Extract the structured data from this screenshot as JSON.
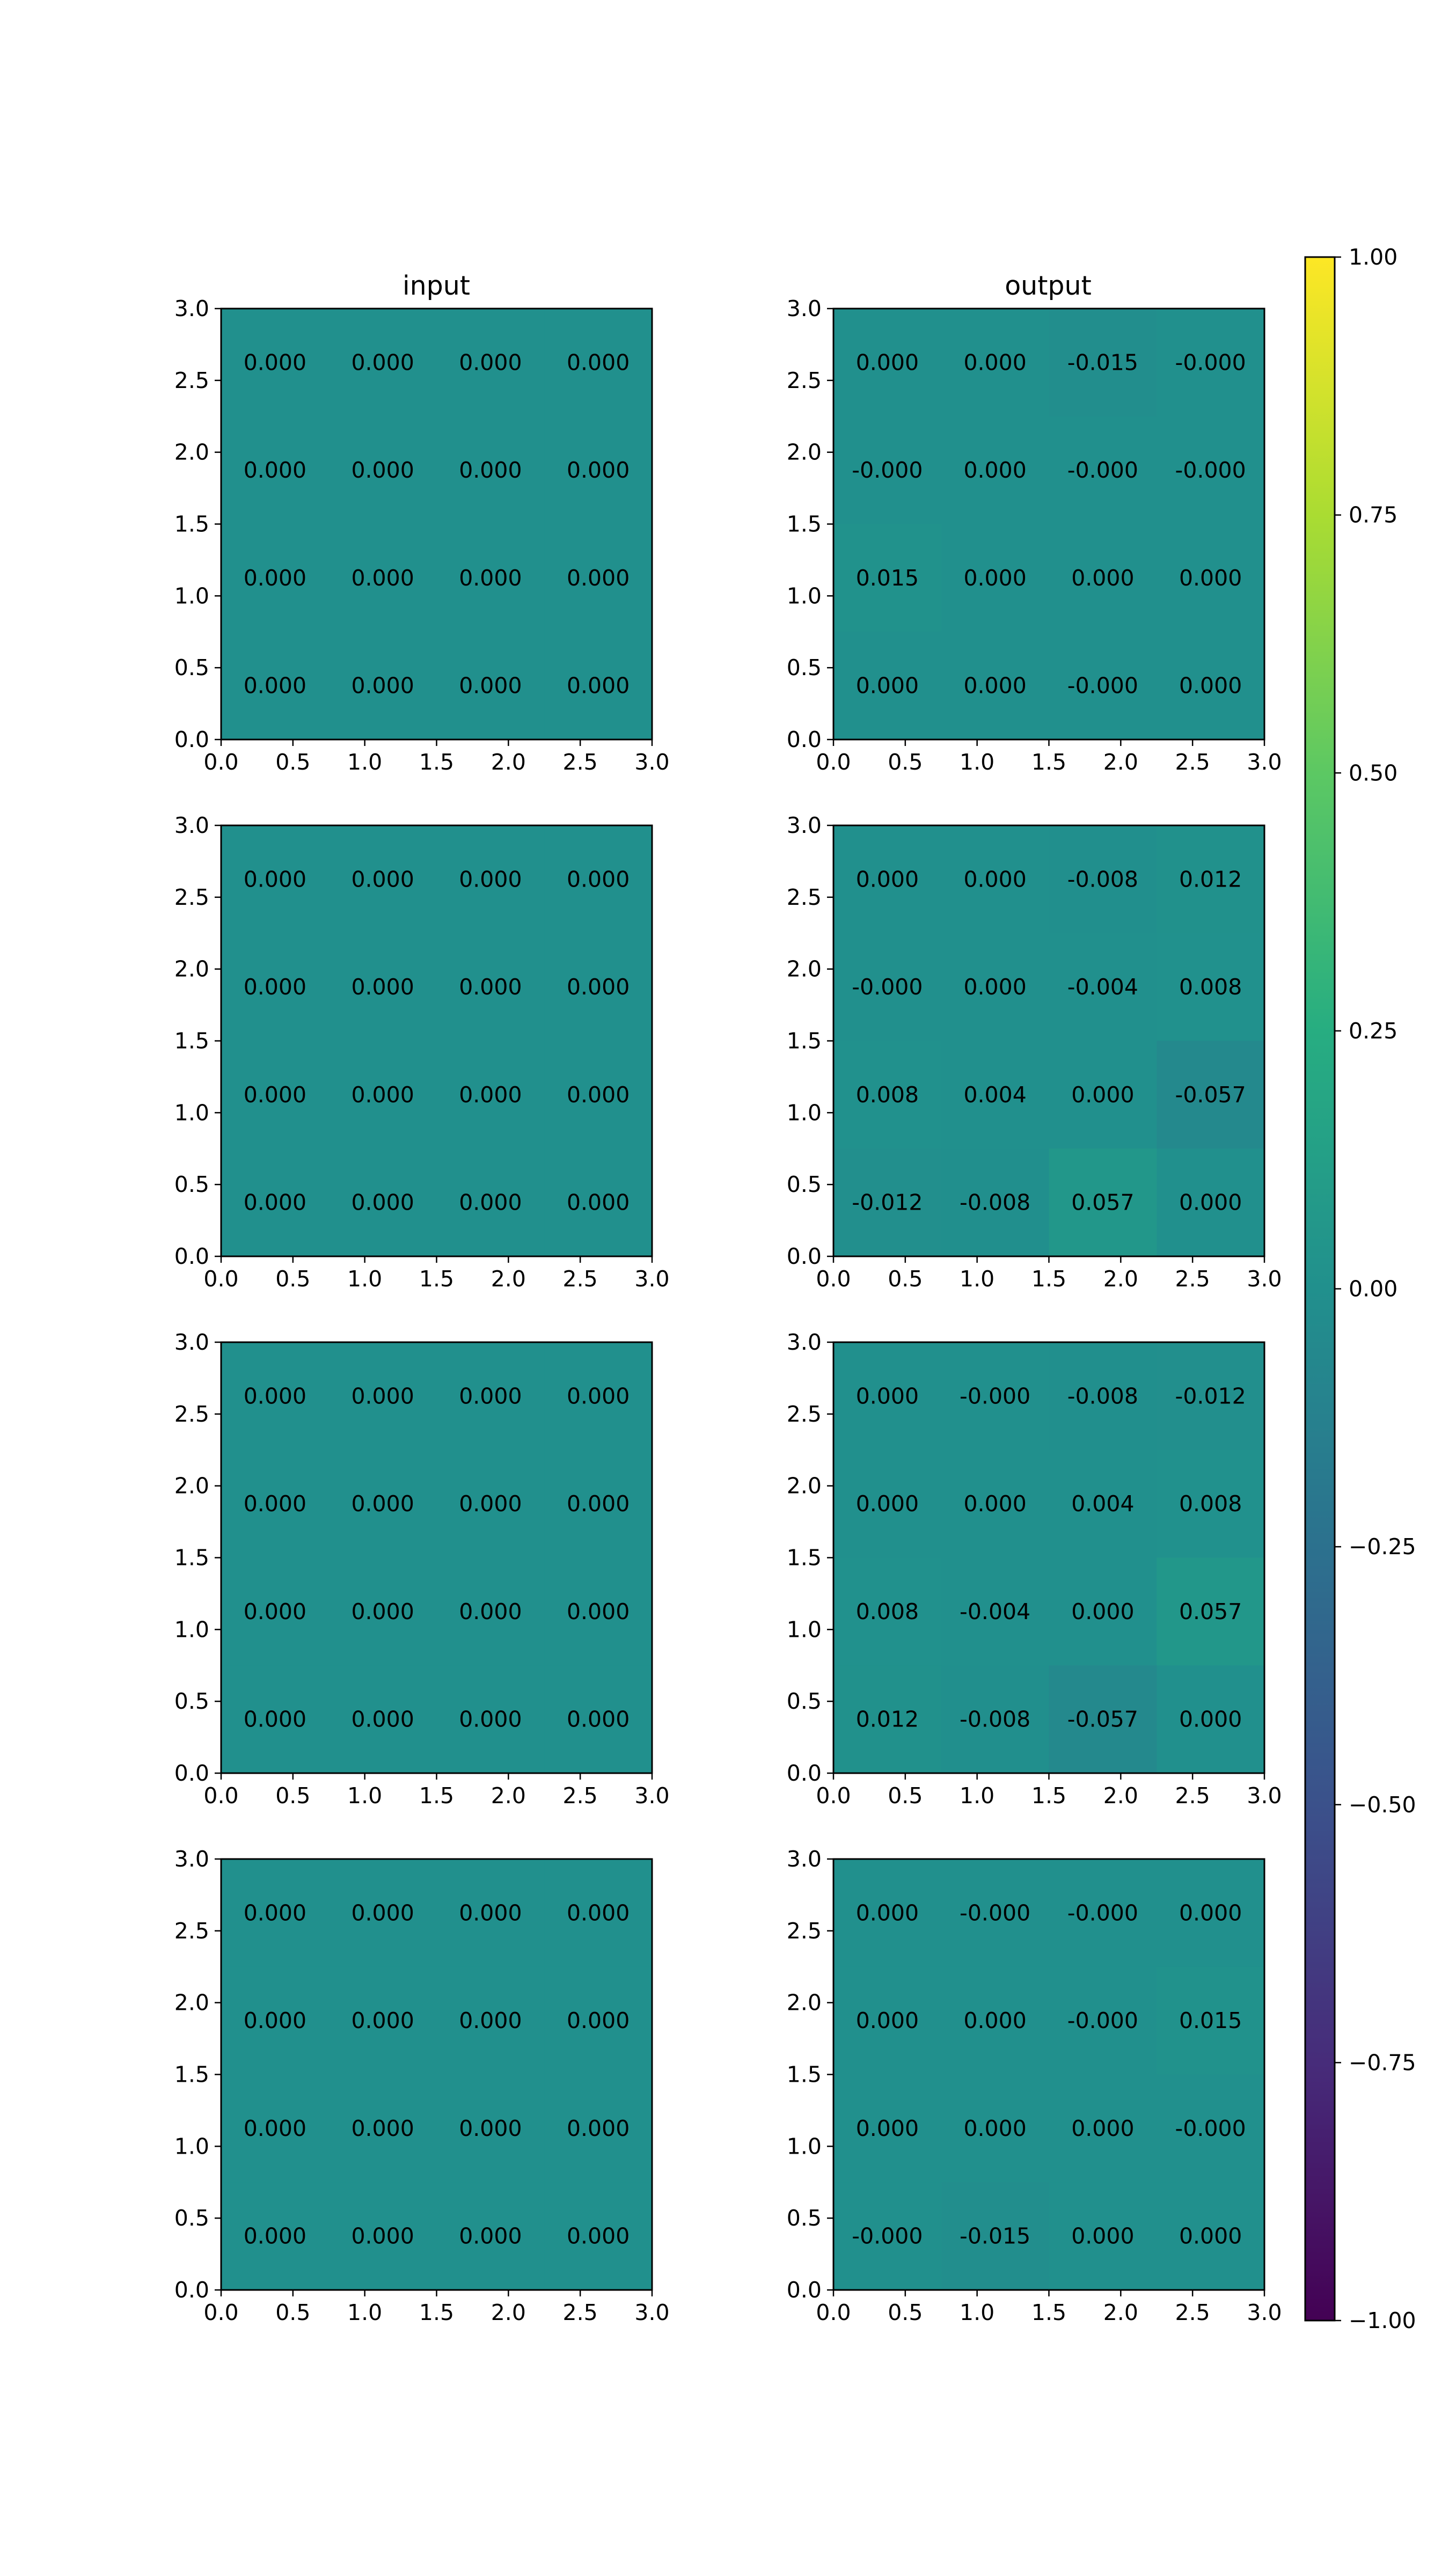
{
  "colormap": "viridis",
  "chart_data": {
    "type": "heatmap",
    "columns": [
      {
        "title": "input"
      },
      {
        "title": "output"
      }
    ],
    "xlim": [
      0,
      3
    ],
    "ylim": [
      3,
      0
    ],
    "xticks": [
      "0.0",
      "0.5",
      "1.0",
      "1.5",
      "2.0",
      "2.5",
      "3.0"
    ],
    "yticks": [
      "0.0",
      "0.5",
      "1.0",
      "1.5",
      "2.0",
      "2.5",
      "3.0"
    ],
    "colorbar": {
      "vmin": -1,
      "vmax": 1,
      "ticks": [
        "1.00",
        "0.75",
        "0.50",
        "0.25",
        "0.00",
        "−0.25",
        "−0.50",
        "−0.75",
        "−1.00"
      ]
    },
    "panels": [
      {
        "row": 0,
        "col": 0,
        "values": [
          [
            0,
            0,
            0,
            0
          ],
          [
            0,
            0,
            0,
            0
          ],
          [
            0,
            0,
            0,
            0
          ],
          [
            0,
            0,
            0,
            0
          ]
        ],
        "labels": [
          [
            "0.000",
            "0.000",
            "0.000",
            "0.000"
          ],
          [
            "0.000",
            "0.000",
            "0.000",
            "0.000"
          ],
          [
            "0.000",
            "0.000",
            "0.000",
            "0.000"
          ],
          [
            "0.000",
            "0.000",
            "0.000",
            "0.000"
          ]
        ]
      },
      {
        "row": 0,
        "col": 1,
        "values": [
          [
            0,
            0,
            -0.015,
            0
          ],
          [
            0,
            0,
            0,
            0
          ],
          [
            0.015,
            0,
            0,
            0
          ],
          [
            0,
            0,
            0,
            0
          ]
        ],
        "labels": [
          [
            "0.000",
            "0.000",
            "-0.015",
            "-0.000"
          ],
          [
            "-0.000",
            "0.000",
            "-0.000",
            "-0.000"
          ],
          [
            "0.015",
            "0.000",
            "0.000",
            "0.000"
          ],
          [
            "0.000",
            "0.000",
            "-0.000",
            "0.000"
          ]
        ]
      },
      {
        "row": 1,
        "col": 0,
        "values": [
          [
            0,
            0,
            0,
            0
          ],
          [
            0,
            0,
            0,
            0
          ],
          [
            0,
            0,
            0,
            0
          ],
          [
            0,
            0,
            0,
            0
          ]
        ],
        "labels": [
          [
            "0.000",
            "0.000",
            "0.000",
            "0.000"
          ],
          [
            "0.000",
            "0.000",
            "0.000",
            "0.000"
          ],
          [
            "0.000",
            "0.000",
            "0.000",
            "0.000"
          ],
          [
            "0.000",
            "0.000",
            "0.000",
            "0.000"
          ]
        ]
      },
      {
        "row": 1,
        "col": 1,
        "values": [
          [
            0,
            0,
            -0.008,
            0.012
          ],
          [
            0,
            0,
            -0.004,
            0.008
          ],
          [
            0.008,
            0.004,
            0,
            -0.057
          ],
          [
            -0.012,
            -0.008,
            0.057,
            0
          ]
        ],
        "labels": [
          [
            "0.000",
            "0.000",
            "-0.008",
            "0.012"
          ],
          [
            "-0.000",
            "0.000",
            "-0.004",
            "0.008"
          ],
          [
            "0.008",
            "0.004",
            "0.000",
            "-0.057"
          ],
          [
            "-0.012",
            "-0.008",
            "0.057",
            "0.000"
          ]
        ]
      },
      {
        "row": 2,
        "col": 0,
        "values": [
          [
            0,
            0,
            0,
            0
          ],
          [
            0,
            0,
            0,
            0
          ],
          [
            0,
            0,
            0,
            0
          ],
          [
            0,
            0,
            0,
            0
          ]
        ],
        "labels": [
          [
            "0.000",
            "0.000",
            "0.000",
            "0.000"
          ],
          [
            "0.000",
            "0.000",
            "0.000",
            "0.000"
          ],
          [
            "0.000",
            "0.000",
            "0.000",
            "0.000"
          ],
          [
            "0.000",
            "0.000",
            "0.000",
            "0.000"
          ]
        ]
      },
      {
        "row": 2,
        "col": 1,
        "values": [
          [
            0,
            0,
            -0.008,
            -0.012
          ],
          [
            0,
            0,
            0.004,
            0.008
          ],
          [
            0.008,
            -0.004,
            0,
            0.057
          ],
          [
            0.012,
            -0.008,
            -0.057,
            0
          ]
        ],
        "labels": [
          [
            "0.000",
            "-0.000",
            "-0.008",
            "-0.012"
          ],
          [
            "0.000",
            "0.000",
            "0.004",
            "0.008"
          ],
          [
            "0.008",
            "-0.004",
            "0.000",
            "0.057"
          ],
          [
            "0.012",
            "-0.008",
            "-0.057",
            "0.000"
          ]
        ]
      },
      {
        "row": 3,
        "col": 0,
        "values": [
          [
            0,
            0,
            0,
            0
          ],
          [
            0,
            0,
            0,
            0
          ],
          [
            0,
            0,
            0,
            0
          ],
          [
            0,
            0,
            0,
            0
          ]
        ],
        "labels": [
          [
            "0.000",
            "0.000",
            "0.000",
            "0.000"
          ],
          [
            "0.000",
            "0.000",
            "0.000",
            "0.000"
          ],
          [
            "0.000",
            "0.000",
            "0.000",
            "0.000"
          ],
          [
            "0.000",
            "0.000",
            "0.000",
            "0.000"
          ]
        ]
      },
      {
        "row": 3,
        "col": 1,
        "values": [
          [
            0,
            0,
            0,
            0
          ],
          [
            0,
            0,
            0,
            0.015
          ],
          [
            0,
            0,
            0,
            0
          ],
          [
            0,
            -0.015,
            0,
            0
          ]
        ],
        "labels": [
          [
            "0.000",
            "-0.000",
            "-0.000",
            "0.000"
          ],
          [
            "0.000",
            "0.000",
            "-0.000",
            "0.015"
          ],
          [
            "0.000",
            "0.000",
            "0.000",
            "-0.000"
          ],
          [
            "-0.000",
            "-0.015",
            "0.000",
            "0.000"
          ]
        ]
      }
    ]
  }
}
